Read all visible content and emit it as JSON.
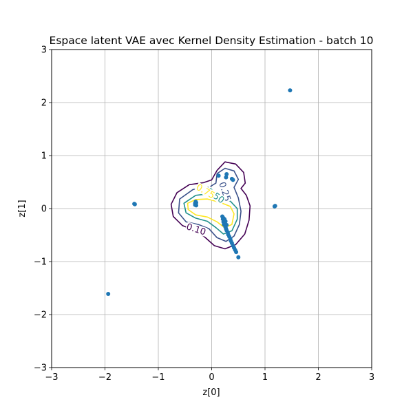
{
  "chart_data": {
    "type": "scatter",
    "title": "Espace latent VAE avec Kernel Density Estimation - batch 10",
    "xlabel": "z[0]",
    "ylabel": "z[1]",
    "xlim": [
      -3,
      3
    ],
    "ylim": [
      -3,
      3
    ],
    "xticks": [
      -3,
      -2,
      -1,
      0,
      1,
      2,
      3
    ],
    "yticks": [
      -3,
      -2,
      -1,
      0,
      1,
      2,
      3
    ],
    "xtick_labels": [
      "−3",
      "−2",
      "−1",
      "0",
      "1",
      "2",
      "3"
    ],
    "ytick_labels": [
      "−3",
      "−2",
      "−1",
      "0",
      "1",
      "2",
      "3"
    ],
    "grid": true,
    "point_color": "#1f77b4",
    "points": [
      [
        1.47,
        2.23
      ],
      [
        -1.45,
        0.09
      ],
      [
        -1.44,
        0.08
      ],
      [
        1.19,
        0.05
      ],
      [
        1.18,
        0.04
      ],
      [
        -1.94,
        -1.61
      ],
      [
        -0.3,
        0.09
      ],
      [
        -0.31,
        0.07
      ],
      [
        -0.29,
        0.11
      ],
      [
        -0.3,
        0.13
      ],
      [
        -0.29,
        0.06
      ],
      [
        -0.31,
        0.1
      ],
      [
        0.13,
        0.62
      ],
      [
        0.28,
        0.65
      ],
      [
        0.27,
        0.59
      ],
      [
        0.38,
        0.56
      ],
      [
        0.4,
        0.54
      ],
      [
        0.2,
        -0.15
      ],
      [
        0.22,
        -0.18
      ],
      [
        0.21,
        -0.2
      ],
      [
        0.23,
        -0.22
      ],
      [
        0.22,
        -0.25
      ],
      [
        0.24,
        -0.27
      ],
      [
        0.23,
        -0.3
      ],
      [
        0.25,
        -0.32
      ],
      [
        0.26,
        -0.35
      ],
      [
        0.27,
        -0.38
      ],
      [
        0.28,
        -0.41
      ],
      [
        0.3,
        -0.45
      ],
      [
        0.31,
        -0.49
      ],
      [
        0.33,
        -0.53
      ],
      [
        0.35,
        -0.57
      ],
      [
        0.36,
        -0.61
      ],
      [
        0.38,
        -0.65
      ],
      [
        0.4,
        -0.7
      ],
      [
        0.42,
        -0.74
      ],
      [
        0.44,
        -0.78
      ],
      [
        0.46,
        -0.82
      ],
      [
        0.5,
        -0.92
      ],
      [
        0.24,
        -0.2
      ],
      [
        0.26,
        -0.24
      ],
      [
        0.25,
        -0.28
      ],
      [
        0.28,
        -0.31
      ]
    ],
    "contour_levels": [
      {
        "level": 0.1,
        "label": "0.10",
        "color": "#440154",
        "path": [
          [
            -0.15,
            0.49
          ],
          [
            0.0,
            0.54
          ],
          [
            0.1,
            0.72
          ],
          [
            0.25,
            0.88
          ],
          [
            0.45,
            0.84
          ],
          [
            0.6,
            0.68
          ],
          [
            0.63,
            0.48
          ],
          [
            0.55,
            0.38
          ],
          [
            0.65,
            0.25
          ],
          [
            0.72,
            0.05
          ],
          [
            0.7,
            -0.22
          ],
          [
            0.62,
            -0.48
          ],
          [
            0.45,
            -0.68
          ],
          [
            0.25,
            -0.76
          ],
          [
            0.05,
            -0.7
          ],
          [
            -0.15,
            -0.52
          ],
          [
            -0.35,
            -0.4
          ],
          [
            -0.55,
            -0.32
          ],
          [
            -0.72,
            -0.15
          ],
          [
            -0.76,
            0.08
          ],
          [
            -0.65,
            0.3
          ],
          [
            -0.42,
            0.45
          ]
        ]
      },
      {
        "level": 0.25,
        "label": "0.25",
        "color": "#3b528b",
        "path": [
          [
            -0.35,
            0.36
          ],
          [
            -0.05,
            0.4
          ],
          [
            0.08,
            0.48
          ],
          [
            0.1,
            0.66
          ],
          [
            0.25,
            0.76
          ],
          [
            0.42,
            0.71
          ],
          [
            0.5,
            0.55
          ],
          [
            0.42,
            0.4
          ],
          [
            0.5,
            0.2
          ],
          [
            0.55,
            -0.05
          ],
          [
            0.52,
            -0.3
          ],
          [
            0.42,
            -0.52
          ],
          [
            0.27,
            -0.62
          ],
          [
            0.1,
            -0.55
          ],
          [
            -0.05,
            -0.38
          ],
          [
            -0.25,
            -0.3
          ],
          [
            -0.48,
            -0.25
          ],
          [
            -0.62,
            -0.08
          ],
          [
            -0.6,
            0.18
          ]
        ]
      },
      {
        "level": 0.5,
        "label": "0.50",
        "color": "#21918c",
        "path": [
          [
            -0.3,
            0.25
          ],
          [
            -0.05,
            0.28
          ],
          [
            0.15,
            0.22
          ],
          [
            0.35,
            0.14
          ],
          [
            0.48,
            0.0
          ],
          [
            0.48,
            -0.2
          ],
          [
            0.38,
            -0.42
          ],
          [
            0.22,
            -0.48
          ],
          [
            0.08,
            -0.36
          ],
          [
            -0.08,
            -0.24
          ],
          [
            -0.3,
            -0.18
          ],
          [
            -0.48,
            -0.08
          ],
          [
            -0.52,
            0.1
          ]
        ]
      },
      {
        "level": 0.75,
        "label": "0.75",
        "color": "#fde725",
        "path": [
          [
            -0.3,
            0.17
          ],
          [
            -0.08,
            0.18
          ],
          [
            0.15,
            0.12
          ],
          [
            0.35,
            0.04
          ],
          [
            0.42,
            -0.1
          ],
          [
            0.38,
            -0.3
          ],
          [
            0.24,
            -0.36
          ],
          [
            0.1,
            -0.25
          ],
          [
            -0.08,
            -0.16
          ],
          [
            -0.3,
            -0.12
          ],
          [
            -0.44,
            -0.02
          ],
          [
            -0.45,
            0.1
          ]
        ]
      }
    ],
    "contour_label_items": [
      {
        "text": "0.10",
        "x": -0.3,
        "y": -0.42,
        "rotation": 18,
        "color": "#440154"
      },
      {
        "text": "0.25",
        "x": 0.22,
        "y": 0.31,
        "rotation": 72,
        "color": "#3b528b"
      },
      {
        "text": "0.50",
        "x": 0.05,
        "y": 0.22,
        "rotation": 35,
        "color": "#21918c"
      },
      {
        "text": "0.75",
        "x": -0.13,
        "y": 0.3,
        "rotation": 30,
        "color": "#fde725"
      }
    ]
  }
}
